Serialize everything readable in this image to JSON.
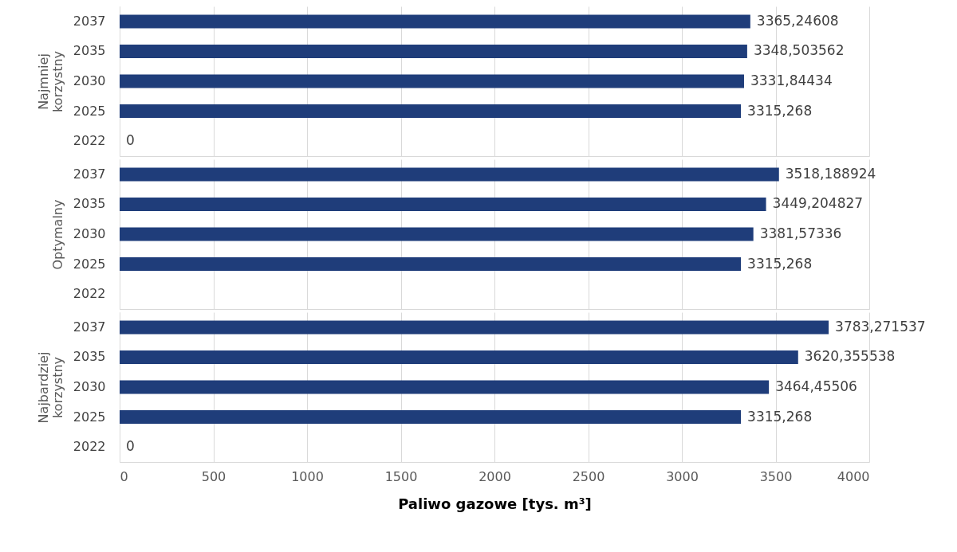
{
  "chart_data": [
    {
      "type": "bar",
      "orientation": "horizontal",
      "ylabel": "Najmniej korzystny",
      "categories": [
        "2037",
        "2035",
        "2030",
        "2025",
        "2022"
      ],
      "values": [
        3365.24608,
        3348.503562,
        3331.84434,
        3315.268,
        0
      ],
      "value_labels": [
        "3365,24608",
        "3348,503562",
        "3331,84434",
        "3315,268",
        "0"
      ],
      "color": "#1f3d7a",
      "xlim": [
        0,
        4000
      ],
      "xticks": [
        0,
        500,
        1000,
        1500,
        2000,
        2500,
        3000,
        3500,
        4000
      ],
      "grid": "x",
      "tick_labels": "y"
    },
    {
      "type": "bar",
      "orientation": "horizontal",
      "ylabel": "Optymalny",
      "categories": [
        "2037",
        "2035",
        "2030",
        "2025",
        "2022"
      ],
      "values": [
        3518.188924,
        3449.204827,
        3381.57336,
        3315.268,
        null
      ],
      "value_labels": [
        "3518,188924",
        "3449,204827",
        "3381,57336",
        "3315,268",
        null
      ],
      "color": "#1f3d7a",
      "xlim": [
        0,
        4000
      ],
      "xticks": [
        0,
        500,
        1000,
        1500,
        2000,
        2500,
        3000,
        3500,
        4000
      ],
      "grid": "x",
      "tick_labels": "y"
    },
    {
      "type": "bar",
      "orientation": "horizontal",
      "ylabel": "Najbardziej korzystny",
      "xlabel": "Paliwo gazowe [tys. m³]",
      "categories": [
        "2037",
        "2035",
        "2030",
        "2025",
        "2022"
      ],
      "values": [
        3783.271537,
        3620.355538,
        3464.45506,
        3315.268,
        0
      ],
      "value_labels": [
        "3783,271537",
        "3620,355538",
        "3464,45506",
        "3315,268",
        "0"
      ],
      "color": "#1f3d7a",
      "xlim": [
        0,
        4000
      ],
      "xticks": [
        0,
        500,
        1000,
        1500,
        2000,
        2500,
        3000,
        3500,
        4000
      ],
      "grid": "x"
    }
  ]
}
